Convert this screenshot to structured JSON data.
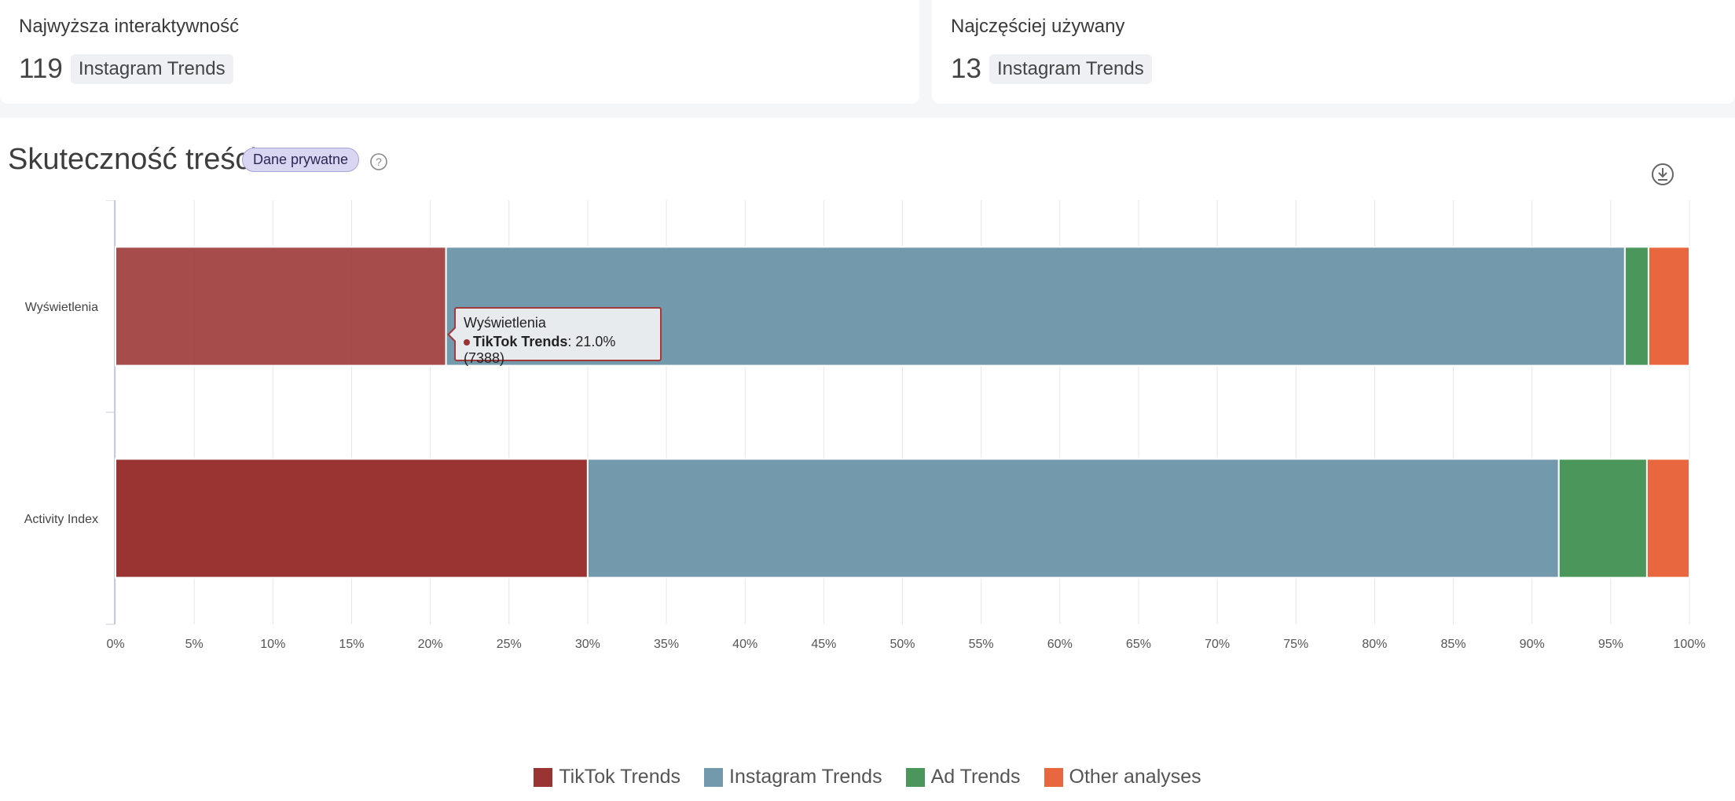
{
  "cards": [
    {
      "label": "Najwyższa interaktywność",
      "value": "119",
      "tag": "Instagram Trends"
    },
    {
      "label": "Najczęściej używany",
      "value": "13",
      "tag": "Instagram Trends"
    }
  ],
  "panel": {
    "title": "Skuteczność treści",
    "badge": "Dane prywatne"
  },
  "icons": {
    "help": "question-circle-icon",
    "download": "download-icon"
  },
  "tooltip": {
    "category": "Wyświetlenia",
    "series": "TikTok Trends",
    "value": ": 21.0% (7388)"
  },
  "chart_data": {
    "type": "bar",
    "orientation": "horizontal",
    "stacking": "percent",
    "categories": [
      "Wyświetlenia",
      "Activity Index"
    ],
    "series": [
      {
        "name": "TikTok Trends",
        "color": "#9a3433",
        "values": [
          21.0,
          30.0
        ]
      },
      {
        "name": "Instagram Trends",
        "color": "#7399ad",
        "values": [
          74.9,
          61.7
        ]
      },
      {
        "name": "Ad Trends",
        "color": "#4a965b",
        "values": [
          1.5,
          5.6
        ]
      },
      {
        "name": "Other analyses",
        "color": "#e8673f",
        "values": [
          2.6,
          2.7
        ]
      }
    ],
    "xlim": [
      0,
      100
    ],
    "xticks": [
      "0%",
      "5%",
      "10%",
      "15%",
      "20%",
      "25%",
      "30%",
      "35%",
      "40%",
      "45%",
      "50%",
      "55%",
      "60%",
      "65%",
      "70%",
      "75%",
      "80%",
      "85%",
      "90%",
      "95%",
      "100%"
    ],
    "grid": true,
    "legend_position": "bottom-center",
    "highlighted": {
      "category": "Wyświetlenia",
      "series": "TikTok Trends"
    }
  }
}
